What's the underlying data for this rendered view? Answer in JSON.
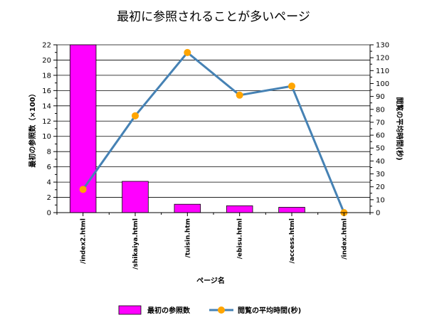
{
  "chart_data": {
    "type": "bar",
    "title": "最初に参照されることが多いページ",
    "xlabel": "ページ名",
    "ylabel": "最初の参照数（×100）",
    "y2label": "閲覧の平均時間(秒)",
    "categories": [
      "/index2.html",
      "/shikaiya.html",
      "/tuisin.htm",
      "/ebisu.html",
      "/access.html",
      "/index.html"
    ],
    "ylim": [
      0,
      22
    ],
    "y2lim": [
      0,
      130
    ],
    "yticks": [
      0,
      2,
      4,
      6,
      8,
      10,
      12,
      14,
      16,
      18,
      20,
      22
    ],
    "y2ticks": [
      0,
      10,
      20,
      30,
      40,
      50,
      60,
      70,
      80,
      90,
      100,
      110,
      120,
      130
    ],
    "grid": true,
    "legend_position": "bottom",
    "series": [
      {
        "name": "最初の参照数",
        "type": "bar",
        "axis": "left",
        "color": "#ff00ff",
        "values": [
          22,
          4.1,
          1.1,
          0.9,
          0.7,
          0
        ]
      },
      {
        "name": "閲覧の平均時間(秒)",
        "type": "line",
        "axis": "right",
        "color": "#4682b4",
        "marker_color": "#ffa500",
        "values": [
          18,
          75,
          124,
          91,
          98,
          0
        ]
      }
    ]
  }
}
